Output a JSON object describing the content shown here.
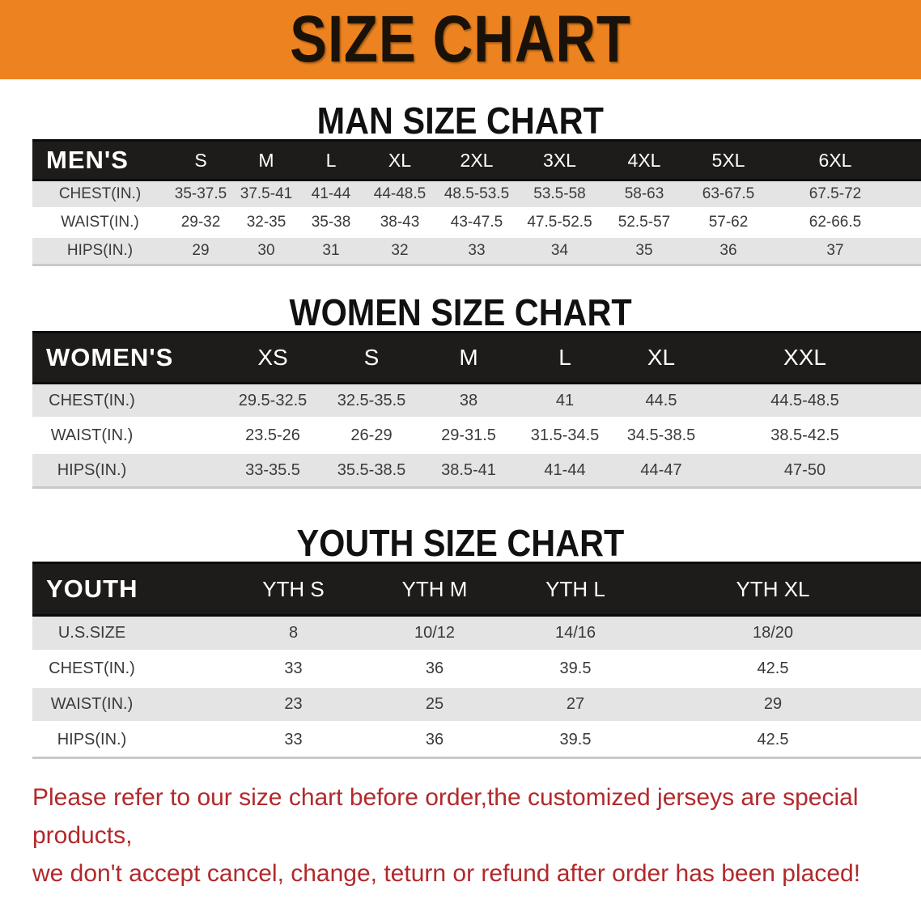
{
  "banner": {
    "title": "SIZE CHART",
    "background_color": "#EC8320"
  },
  "sections": [
    {
      "title": "MAN SIZE CHART",
      "table": {
        "header_label": "MEN'S",
        "columns": [
          "S",
          "M",
          "L",
          "XL",
          "2XL",
          "3XL",
          "4XL",
          "5XL",
          "6XL"
        ],
        "rows": [
          {
            "label": "CHEST(IN.)",
            "values": [
              "35-37.5",
              "37.5-41",
              "41-44",
              "44-48.5",
              "48.5-53.5",
              "53.5-58",
              "58-63",
              "63-67.5",
              "67.5-72"
            ]
          },
          {
            "label": "WAIST(IN.)",
            "values": [
              "29-32",
              "32-35",
              "35-38",
              "38-43",
              "43-47.5",
              "47.5-52.5",
              "52.5-57",
              "57-62",
              "62-66.5"
            ]
          },
          {
            "label": "HIPS(IN.)",
            "values": [
              "29",
              "30",
              "31",
              "32",
              "33",
              "34",
              "35",
              "36",
              "37"
            ]
          }
        ]
      }
    },
    {
      "title": "WOMEN SIZE CHART",
      "table": {
        "header_label": "WOMEN'S",
        "columns": [
          "XS",
          "S",
          "M",
          "L",
          "XL",
          "XXL"
        ],
        "rows": [
          {
            "label": "CHEST(IN.)",
            "values": [
              "29.5-32.5",
              "32.5-35.5",
              "38",
              "41",
              "44.5",
              "44.5-48.5"
            ]
          },
          {
            "label": "WAIST(IN.)",
            "values": [
              "23.5-26",
              "26-29",
              "29-31.5",
              "31.5-34.5",
              "34.5-38.5",
              "38.5-42.5"
            ]
          },
          {
            "label": "HIPS(IN.)",
            "values": [
              "33-35.5",
              "35.5-38.5",
              "38.5-41",
              "41-44",
              "44-47",
              "47-50"
            ]
          }
        ]
      }
    },
    {
      "title": "YOUTH SIZE CHART",
      "table": {
        "header_label": "YOUTH",
        "columns": [
          "YTH S",
          "YTH M",
          "YTH L",
          "YTH XL"
        ],
        "rows": [
          {
            "label": "U.S.SIZE",
            "values": [
              "8",
              "10/12",
              "14/16",
              "18/20"
            ]
          },
          {
            "label": "CHEST(IN.)",
            "values": [
              "33",
              "36",
              "39.5",
              "42.5"
            ]
          },
          {
            "label": "WAIST(IN.)",
            "values": [
              "23",
              "25",
              "27",
              "29"
            ]
          },
          {
            "label": "HIPS(IN.)",
            "values": [
              "33",
              "36",
              "39.5",
              "42.5"
            ]
          }
        ]
      }
    }
  ],
  "footer": {
    "line1": "Please refer to our size chart before order,the customized jerseys are special products,",
    "line2": "we don't accept cancel, change, teturn or refund after order has been placed!",
    "text_color": "#b2292c"
  }
}
